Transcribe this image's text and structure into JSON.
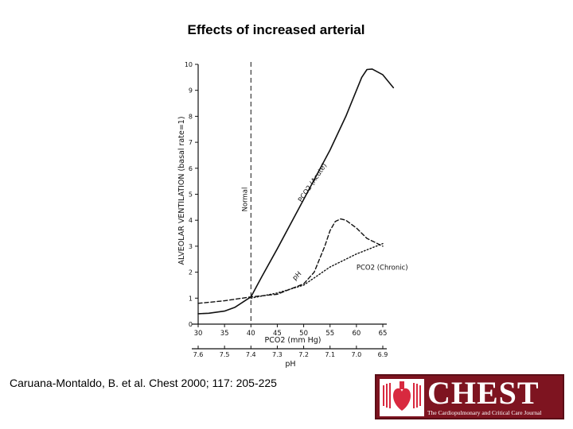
{
  "slide": {
    "title": "Effects of increased arterial",
    "citation": "Caruana-Montaldo, B. et al. Chest 2000; 117: 205-225"
  },
  "logo": {
    "word": "CHEST",
    "tagline": "The Cardiopulmonary and Critical Care Journal",
    "colors": {
      "background": "#7e1420",
      "mark": "#d8293f"
    }
  },
  "chart_data": {
    "type": "line",
    "ylabel": "ALVEOLAR VENTILATION (basal rate=1)",
    "xlabel": "PCO2 (mm Hg)",
    "xlabel2": "pH",
    "ylim": [
      0,
      10
    ],
    "xlim": [
      30,
      65
    ],
    "yticks": [
      "0",
      "1",
      "2",
      "3",
      "4",
      "5",
      "6",
      "7",
      "8",
      "9",
      "10"
    ],
    "xticks": [
      "30",
      "35",
      "40",
      "45",
      "50",
      "55",
      "60",
      "65"
    ],
    "ph_ticks": [
      {
        "pco2": 30,
        "label": "7.6"
      },
      {
        "pco2": 35,
        "label": "7.5"
      },
      {
        "pco2": 40,
        "label": "7.4"
      },
      {
        "pco2": 45,
        "label": "7.3"
      },
      {
        "pco2": 50,
        "label": "7.2"
      },
      {
        "pco2": 55,
        "label": "7.1"
      },
      {
        "pco2": 60,
        "label": "7.0"
      },
      {
        "pco2": 65,
        "label": "6.9"
      }
    ],
    "normal_line": {
      "x": 40,
      "label": "Normal"
    },
    "grid": false,
    "series": [
      {
        "name": "PCO2 (Acute)",
        "style": "solid",
        "x": [
          30,
          32,
          35,
          37,
          38.5,
          40,
          42,
          45,
          50,
          55,
          58,
          60,
          61,
          62,
          63,
          65,
          67
        ],
        "y": [
          0.4,
          0.42,
          0.5,
          0.65,
          0.85,
          1.05,
          1.8,
          2.9,
          4.8,
          6.7,
          8.0,
          9.0,
          9.5,
          9.8,
          9.82,
          9.6,
          9.1
        ]
      },
      {
        "name": "pH",
        "style": "dashed",
        "x": [
          30,
          35,
          40,
          45,
          50,
          52,
          54,
          55,
          56,
          57,
          58,
          60,
          62,
          65
        ],
        "y": [
          0.8,
          0.9,
          1.05,
          1.15,
          1.55,
          2.0,
          3.0,
          3.6,
          3.95,
          4.05,
          4.0,
          3.7,
          3.3,
          3.0
        ]
      },
      {
        "name": "PCO2 (Chronic)",
        "style": "dotted",
        "x": [
          40,
          45,
          50,
          55,
          60,
          65
        ],
        "y": [
          1.0,
          1.2,
          1.5,
          2.2,
          2.7,
          3.1
        ]
      }
    ],
    "annotations": [
      {
        "text": "PCO2 (Acute)",
        "x": 52,
        "y": 5.4
      },
      {
        "text": "PCO2 (Chronic)",
        "x": 60,
        "y": 2.1
      },
      {
        "text": "pH",
        "x": 49,
        "y": 1.8
      }
    ]
  }
}
